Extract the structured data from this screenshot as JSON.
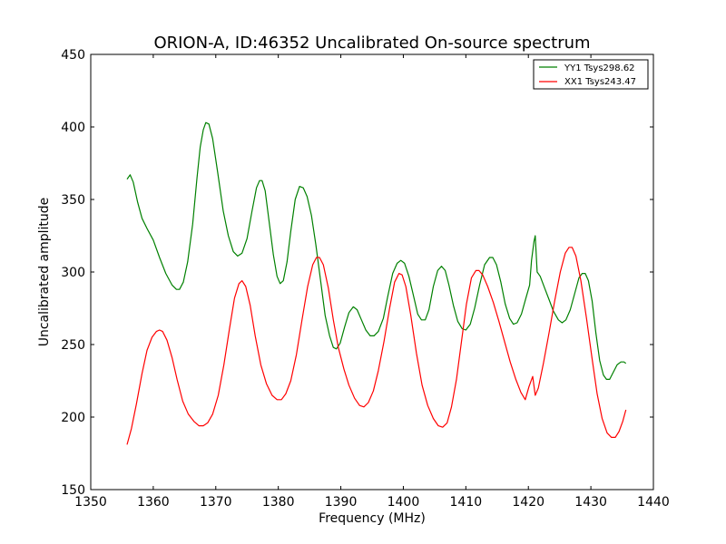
{
  "chart_data": {
    "type": "line",
    "title": "ORION-A, ID:46352 Uncalibrated On-source spectrum",
    "xlabel": "Frequency (MHz)",
    "ylabel": "Uncalibrated amplitude",
    "xlim": [
      1350,
      1440
    ],
    "ylim": [
      150,
      450
    ],
    "xticks": [
      1350,
      1360,
      1370,
      1380,
      1390,
      1400,
      1410,
      1420,
      1430,
      1440
    ],
    "yticks": [
      150,
      200,
      250,
      300,
      350,
      400,
      450
    ],
    "grid": false,
    "legend": "top-right",
    "series": [
      {
        "name": "YY1 Tsys298.62",
        "color": "#008000",
        "points": [
          [
            1355.8,
            364
          ],
          [
            1356.3,
            367
          ],
          [
            1356.8,
            362
          ],
          [
            1357.5,
            348
          ],
          [
            1358.2,
            337
          ],
          [
            1359.0,
            330
          ],
          [
            1360.0,
            322
          ],
          [
            1361.0,
            310
          ],
          [
            1362.0,
            299
          ],
          [
            1363.0,
            291
          ],
          [
            1363.7,
            288
          ],
          [
            1364.2,
            288
          ],
          [
            1364.8,
            293
          ],
          [
            1365.5,
            307
          ],
          [
            1366.3,
            333
          ],
          [
            1367.0,
            365
          ],
          [
            1367.5,
            386
          ],
          [
            1368.0,
            398
          ],
          [
            1368.4,
            403
          ],
          [
            1368.9,
            402
          ],
          [
            1369.5,
            392
          ],
          [
            1370.3,
            369
          ],
          [
            1371.2,
            342
          ],
          [
            1372.0,
            325
          ],
          [
            1372.8,
            314
          ],
          [
            1373.5,
            311
          ],
          [
            1374.2,
            313
          ],
          [
            1375.0,
            323
          ],
          [
            1375.8,
            342
          ],
          [
            1376.5,
            358
          ],
          [
            1377.0,
            363
          ],
          [
            1377.4,
            363
          ],
          [
            1377.9,
            356
          ],
          [
            1378.5,
            336
          ],
          [
            1379.2,
            312
          ],
          [
            1379.8,
            297
          ],
          [
            1380.3,
            292
          ],
          [
            1380.8,
            294
          ],
          [
            1381.4,
            307
          ],
          [
            1382.0,
            328
          ],
          [
            1382.7,
            350
          ],
          [
            1383.4,
            359
          ],
          [
            1384.0,
            358
          ],
          [
            1384.6,
            352
          ],
          [
            1385.3,
            339
          ],
          [
            1386.0,
            319
          ],
          [
            1386.8,
            293
          ],
          [
            1387.5,
            270
          ],
          [
            1388.2,
            256
          ],
          [
            1388.8,
            248
          ],
          [
            1389.3,
            247
          ],
          [
            1389.9,
            251
          ],
          [
            1390.6,
            262
          ],
          [
            1391.3,
            272
          ],
          [
            1392.0,
            276
          ],
          [
            1392.6,
            274
          ],
          [
            1393.3,
            267
          ],
          [
            1394.0,
            260
          ],
          [
            1394.7,
            256
          ],
          [
            1395.3,
            256
          ],
          [
            1396.0,
            259
          ],
          [
            1396.8,
            268
          ],
          [
            1397.5,
            283
          ],
          [
            1398.3,
            299
          ],
          [
            1399.0,
            306
          ],
          [
            1399.6,
            308
          ],
          [
            1400.2,
            306
          ],
          [
            1400.9,
            297
          ],
          [
            1401.6,
            284
          ],
          [
            1402.3,
            271
          ],
          [
            1402.9,
            267
          ],
          [
            1403.5,
            267
          ],
          [
            1404.1,
            274
          ],
          [
            1404.8,
            290
          ],
          [
            1405.5,
            301
          ],
          [
            1406.1,
            304
          ],
          [
            1406.7,
            301
          ],
          [
            1407.3,
            291
          ],
          [
            1408.0,
            277
          ],
          [
            1408.7,
            266
          ],
          [
            1409.4,
            261
          ],
          [
            1410.0,
            260
          ],
          [
            1410.7,
            264
          ],
          [
            1411.4,
            275
          ],
          [
            1412.2,
            291
          ],
          [
            1413.0,
            305
          ],
          [
            1413.8,
            310
          ],
          [
            1414.3,
            310
          ],
          [
            1414.9,
            305
          ],
          [
            1415.6,
            293
          ],
          [
            1416.3,
            278
          ],
          [
            1417.0,
            268
          ],
          [
            1417.6,
            264
          ],
          [
            1418.2,
            265
          ],
          [
            1418.9,
            271
          ],
          [
            1419.6,
            282
          ],
          [
            1420.2,
            291
          ],
          [
            1420.5,
            308
          ],
          [
            1420.9,
            321
          ],
          [
            1421.1,
            325
          ],
          [
            1421.4,
            300
          ],
          [
            1421.9,
            297
          ],
          [
            1422.6,
            289
          ],
          [
            1423.3,
            281
          ],
          [
            1424.0,
            273
          ],
          [
            1424.8,
            267
          ],
          [
            1425.4,
            265
          ],
          [
            1426.0,
            267
          ],
          [
            1426.7,
            274
          ],
          [
            1427.4,
            285
          ],
          [
            1428.1,
            296
          ],
          [
            1428.6,
            299
          ],
          [
            1429.1,
            299
          ],
          [
            1429.6,
            294
          ],
          [
            1430.2,
            280
          ],
          [
            1430.8,
            258
          ],
          [
            1431.4,
            239
          ],
          [
            1432.0,
            229
          ],
          [
            1432.5,
            226
          ],
          [
            1433.0,
            226
          ],
          [
            1433.6,
            231
          ],
          [
            1434.2,
            236
          ],
          [
            1434.8,
            238
          ],
          [
            1435.3,
            238
          ],
          [
            1435.6,
            237
          ]
        ]
      },
      {
        "name": "XX1 Tsys243.47",
        "color": "#ff0000",
        "points": [
          [
            1355.8,
            181
          ],
          [
            1356.5,
            192
          ],
          [
            1357.3,
            209
          ],
          [
            1358.2,
            230
          ],
          [
            1359.0,
            246
          ],
          [
            1359.8,
            255
          ],
          [
            1360.5,
            259
          ],
          [
            1361.0,
            260
          ],
          [
            1361.5,
            259
          ],
          [
            1362.2,
            253
          ],
          [
            1363.0,
            241
          ],
          [
            1363.8,
            226
          ],
          [
            1364.7,
            211
          ],
          [
            1365.6,
            202
          ],
          [
            1366.5,
            197
          ],
          [
            1367.3,
            194
          ],
          [
            1368.0,
            194
          ],
          [
            1368.7,
            196
          ],
          [
            1369.5,
            202
          ],
          [
            1370.4,
            215
          ],
          [
            1371.3,
            236
          ],
          [
            1372.2,
            261
          ],
          [
            1373.0,
            282
          ],
          [
            1373.7,
            292
          ],
          [
            1374.2,
            294
          ],
          [
            1374.8,
            290
          ],
          [
            1375.5,
            277
          ],
          [
            1376.3,
            256
          ],
          [
            1377.2,
            236
          ],
          [
            1378.1,
            223
          ],
          [
            1379.0,
            215
          ],
          [
            1379.8,
            212
          ],
          [
            1380.5,
            212
          ],
          [
            1381.2,
            216
          ],
          [
            1382.0,
            225
          ],
          [
            1382.9,
            243
          ],
          [
            1383.8,
            267
          ],
          [
            1384.7,
            290
          ],
          [
            1385.5,
            305
          ],
          [
            1386.1,
            310
          ],
          [
            1386.6,
            310
          ],
          [
            1387.2,
            305
          ],
          [
            1388.0,
            289
          ],
          [
            1388.8,
            267
          ],
          [
            1389.6,
            248
          ],
          [
            1390.5,
            233
          ],
          [
            1391.3,
            222
          ],
          [
            1392.2,
            213
          ],
          [
            1393.0,
            208
          ],
          [
            1393.7,
            207
          ],
          [
            1394.4,
            210
          ],
          [
            1395.2,
            218
          ],
          [
            1396.0,
            232
          ],
          [
            1396.9,
            252
          ],
          [
            1397.8,
            275
          ],
          [
            1398.6,
            293
          ],
          [
            1399.3,
            299
          ],
          [
            1399.8,
            298
          ],
          [
            1400.4,
            290
          ],
          [
            1401.2,
            270
          ],
          [
            1402.1,
            244
          ],
          [
            1403.0,
            222
          ],
          [
            1403.9,
            208
          ],
          [
            1404.8,
            199
          ],
          [
            1405.6,
            194
          ],
          [
            1406.3,
            193
          ],
          [
            1407.0,
            196
          ],
          [
            1407.7,
            207
          ],
          [
            1408.5,
            226
          ],
          [
            1409.3,
            252
          ],
          [
            1410.1,
            278
          ],
          [
            1410.9,
            296
          ],
          [
            1411.6,
            301
          ],
          [
            1412.1,
            301
          ],
          [
            1412.7,
            298
          ],
          [
            1413.5,
            290
          ],
          [
            1414.4,
            279
          ],
          [
            1415.3,
            266
          ],
          [
            1416.2,
            252
          ],
          [
            1417.1,
            238
          ],
          [
            1418.0,
            226
          ],
          [
            1418.8,
            217
          ],
          [
            1419.5,
            212
          ],
          [
            1420.1,
            221
          ],
          [
            1420.7,
            228
          ],
          [
            1421.1,
            215
          ],
          [
            1421.6,
            220
          ],
          [
            1422.4,
            237
          ],
          [
            1423.3,
            258
          ],
          [
            1424.2,
            280
          ],
          [
            1425.1,
            300
          ],
          [
            1425.9,
            313
          ],
          [
            1426.5,
            317
          ],
          [
            1427.0,
            317
          ],
          [
            1427.6,
            311
          ],
          [
            1428.4,
            294
          ],
          [
            1429.3,
            268
          ],
          [
            1430.2,
            240
          ],
          [
            1431.0,
            216
          ],
          [
            1431.8,
            199
          ],
          [
            1432.6,
            189
          ],
          [
            1433.3,
            186
          ],
          [
            1433.9,
            186
          ],
          [
            1434.5,
            190
          ],
          [
            1435.1,
            197
          ],
          [
            1435.6,
            205
          ]
        ]
      }
    ]
  }
}
